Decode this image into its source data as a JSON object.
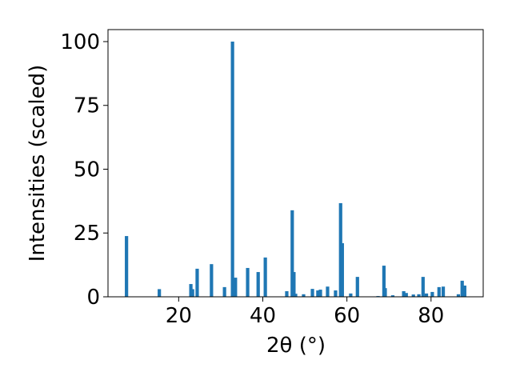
{
  "chart_data": {
    "type": "bar",
    "x_label": "2θ (°)",
    "y_label": "Intensities (scaled)",
    "color": "#1f77b4",
    "x": [
      7.6,
      15.4,
      22.9,
      23.3,
      24.4,
      27.8,
      30.9,
      32.8,
      33.5,
      36.4,
      38.9,
      40.6,
      45.7,
      47.0,
      47.4,
      47.8,
      49.7,
      51.8,
      53.1,
      53.7,
      55.4,
      57.3,
      58.5,
      58.9,
      60.9,
      62.5,
      67.4,
      68.8,
      69.1,
      70.9,
      73.5,
      74.1,
      75.8,
      77.1,
      78.1,
      78.9,
      80.3,
      81.9,
      82.9,
      86.5,
      87.4,
      88.0
    ],
    "values": [
      23.8,
      3,
      5,
      3,
      11,
      12.8,
      3.8,
      100,
      7.5,
      11.3,
      9.7,
      15.4,
      2.2,
      33.9,
      9.7,
      1.2,
      1,
      3.1,
      2.5,
      2.8,
      4,
      2.5,
      36.7,
      21,
      1.3,
      7.8,
      0.3,
      12.2,
      3.4,
      0.6,
      2.2,
      1.5,
      0.9,
      1,
      7.8,
      1.3,
      1.9,
      3.8,
      4,
      1,
      6.3,
      4.4
    ],
    "xlim": [
      3.2,
      92.4
    ],
    "ylim": [
      0,
      104.7
    ],
    "xticks": [
      20,
      40,
      60,
      80
    ],
    "yticks": [
      0,
      25,
      50,
      75,
      100
    ]
  }
}
